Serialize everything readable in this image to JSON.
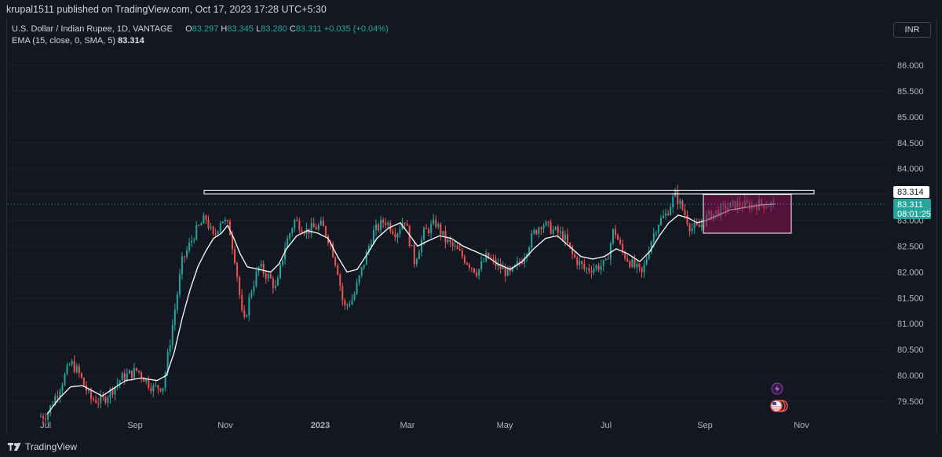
{
  "header": {
    "published": "krupal1511 published on TradingView.com, Oct 17, 2023 17:28 UTC+5:30"
  },
  "legend": {
    "symbol": "U.S. Dollar / Indian Rupee, 1D, VANTAGE",
    "o_label": "O",
    "o": "83.297",
    "h_label": "H",
    "h": "83.345",
    "l_label": "L",
    "l": "83.280",
    "c_label": "C",
    "c": "83.311",
    "change": "+0.035 (+0.04%)",
    "indicator": "EMA (15, close, 0, SMA, 5)",
    "indicator_value": "83.314"
  },
  "currency_button": "INR",
  "price_labels": {
    "ema_value": "83.314",
    "last_price": "83.311",
    "countdown": "08:01:25"
  },
  "footer": {
    "brand": "TradingView"
  },
  "colors": {
    "background": "#131722",
    "up": "#26a69a",
    "down": "#ef5350",
    "ema": "#ffffff",
    "zone_fill": "#880e4f"
  },
  "chart_data": {
    "type": "candlestick",
    "y_ticks": [
      "79.500",
      "80.000",
      "80.500",
      "81.000",
      "81.500",
      "82.000",
      "82.500",
      "83.000",
      "83.500",
      "84.000",
      "84.500",
      "85.000",
      "85.500",
      "86.000"
    ],
    "ylim": [
      79.2,
      86.3
    ],
    "x_ticks": [
      "Jul",
      "Sep",
      "Nov",
      "2023",
      "Mar",
      "May",
      "Jul",
      "Sep",
      "Nov"
    ],
    "series": [
      {
        "name": "EMA (15, close, 0, SMA, 5)",
        "points": [
          [
            "Jul 2022",
            79.25
          ],
          [
            "Aug 2022",
            79.75
          ],
          [
            "Sep 2022",
            79.85
          ],
          [
            "Oct 2022",
            80.3
          ],
          [
            "Oct 2022",
            82.3
          ],
          [
            "Nov 2022",
            82.9
          ],
          [
            "Nov 2022",
            82.05
          ],
          [
            "Dec 2022",
            82.0
          ],
          [
            "Dec 2022",
            82.75
          ],
          [
            "Jan 2023",
            82.6
          ],
          [
            "Jan 2023",
            82.05
          ],
          [
            "Feb 2023",
            82.6
          ],
          [
            "Feb 2023",
            82.95
          ],
          [
            "Mar 2023",
            82.45
          ],
          [
            "Mar 2023",
            82.65
          ],
          [
            "Apr 2023",
            82.35
          ],
          [
            "May 2023",
            82.05
          ],
          [
            "May 2023",
            82.25
          ],
          [
            "Jun 2023",
            82.65
          ],
          [
            "Jun 2023",
            82.45
          ],
          [
            "Jul 2023",
            82.15
          ],
          [
            "Jul 2023",
            82.15
          ],
          [
            "Jul 2023",
            82.45
          ],
          [
            "Aug 2023",
            82.25
          ],
          [
            "Aug 2023",
            82.75
          ],
          [
            "Aug 2023",
            83.05
          ],
          [
            "Sep 2023",
            82.95
          ],
          [
            "Sep 2023",
            83.15
          ],
          [
            "Oct 2023",
            83.314
          ]
        ]
      }
    ],
    "annotations": [
      {
        "type": "rectangle",
        "y_range": [
          83.51,
          83.58
        ]
      },
      {
        "type": "rectangle",
        "y_range": [
          82.75,
          83.5
        ]
      },
      {
        "type": "horizontal_line",
        "value": 83.311
      }
    ]
  }
}
